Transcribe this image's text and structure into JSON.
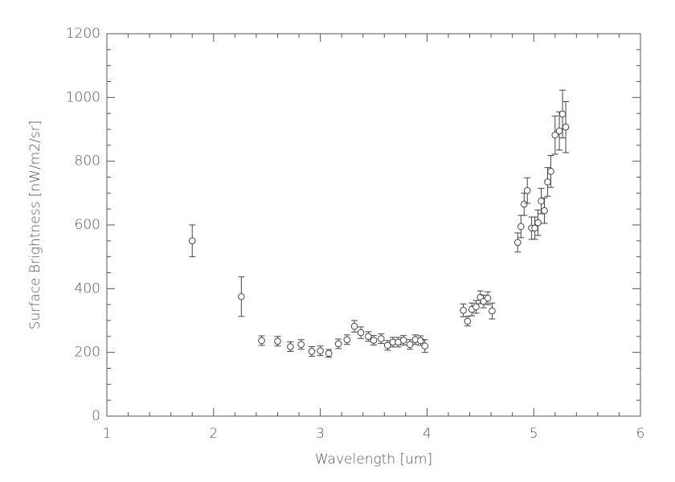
{
  "chart_data": {
    "type": "scatter",
    "x_label": "Wavelength [um]",
    "y_label": "Surface Brightness [nW/m2/sr]",
    "x": [
      1.8,
      2.26,
      2.45,
      2.6,
      2.72,
      2.82,
      2.92,
      3.0,
      3.08,
      3.17,
      3.25,
      3.32,
      3.38,
      3.45,
      3.5,
      3.57,
      3.63,
      3.68,
      3.73,
      3.78,
      3.84,
      3.89,
      3.94,
      3.98,
      4.34,
      4.38,
      4.42,
      4.46,
      4.5,
      4.53,
      4.57,
      4.61,
      4.85,
      4.88,
      4.91,
      4.94,
      4.98,
      5.01,
      5.04,
      5.07,
      5.1,
      5.13,
      5.16,
      5.2,
      5.24,
      5.27,
      5.3
    ],
    "values": [
      550,
      375,
      237,
      235,
      218,
      225,
      203,
      205,
      197,
      227,
      240,
      282,
      262,
      250,
      238,
      243,
      222,
      232,
      232,
      238,
      225,
      240,
      237,
      220,
      332,
      298,
      335,
      343,
      373,
      360,
      370,
      330,
      545,
      595,
      665,
      708,
      590,
      590,
      607,
      675,
      645,
      735,
      768,
      882,
      895,
      948,
      907
    ],
    "errors": [
      50,
      62,
      15,
      15,
      15,
      15,
      15,
      15,
      12,
      15,
      15,
      18,
      18,
      15,
      15,
      15,
      15,
      15,
      15,
      15,
      15,
      15,
      15,
      20,
      20,
      15,
      20,
      20,
      20,
      20,
      20,
      25,
      30,
      35,
      35,
      40,
      35,
      35,
      40,
      40,
      40,
      45,
      50,
      60,
      60,
      75,
      80
    ],
    "color": "#444444",
    "xlim": [
      1,
      6
    ],
    "xticks": [
      1,
      2,
      3,
      4,
      5,
      6
    ],
    "ylim": [
      0,
      1200
    ],
    "yticks": [
      0,
      200,
      400,
      600,
      800,
      1000,
      1200
    ]
  }
}
